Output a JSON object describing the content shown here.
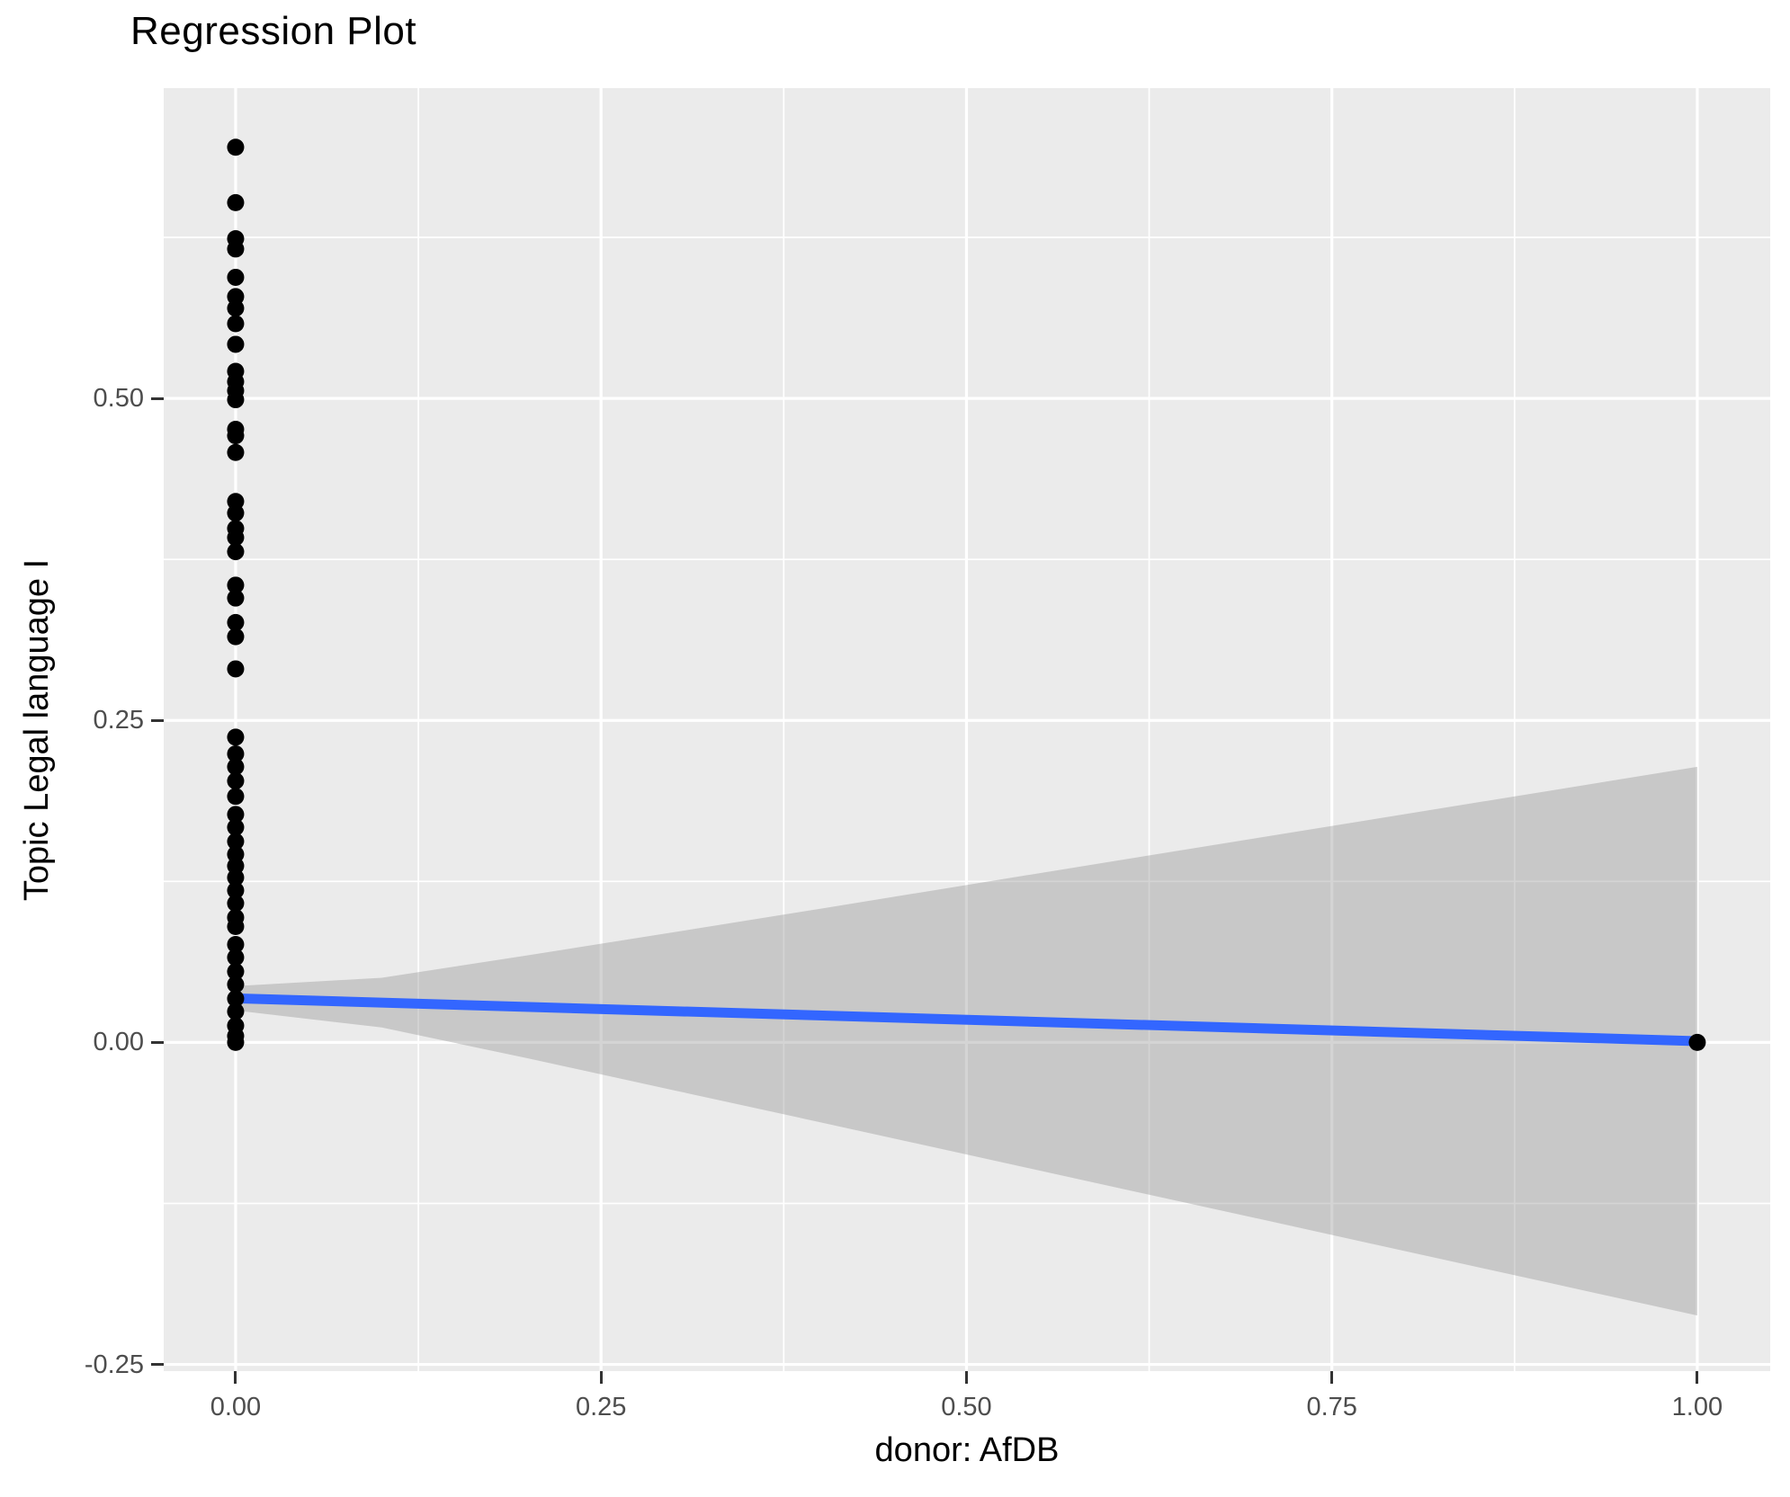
{
  "chart_data": {
    "type": "scatter",
    "title": "Regression Plot",
    "xlabel": "donor: AfDB",
    "ylabel": "Topic Legal language I",
    "legend": "none",
    "grid": true,
    "xlim": [
      -0.0492,
      1.0499
    ],
    "ylim": [
      -0.2552,
      0.7409
    ],
    "x_ticks": [
      {
        "value": 0.0,
        "label": "0.00"
      },
      {
        "value": 0.25,
        "label": "0.25"
      },
      {
        "value": 0.5,
        "label": "0.50"
      },
      {
        "value": 0.75,
        "label": "0.75"
      },
      {
        "value": 1.0,
        "label": "1.00"
      }
    ],
    "y_ticks": [
      {
        "value": -0.25,
        "label": "-0.25"
      },
      {
        "value": 0.0,
        "label": "0.00"
      },
      {
        "value": 0.25,
        "label": "0.25"
      },
      {
        "value": 0.5,
        "label": "0.50"
      }
    ],
    "x_minor": [
      0.125,
      0.375,
      0.625,
      0.875
    ],
    "y_minor": [
      -0.125,
      0.125,
      0.375,
      0.625
    ],
    "points_at_x0": [
      0.695,
      0.652,
      0.624,
      0.616,
      0.594,
      0.579,
      0.57,
      0.558,
      0.542,
      0.521,
      0.513,
      0.506,
      0.499,
      0.476,
      0.471,
      0.458,
      0.42,
      0.411,
      0.399,
      0.392,
      0.381,
      0.355,
      0.345,
      0.326,
      0.315,
      0.29,
      0.237,
      0.224,
      0.214,
      0.203,
      0.191,
      0.177,
      0.167,
      0.156,
      0.146,
      0.137,
      0.128,
      0.118,
      0.108,
      0.097,
      0.09,
      0.076,
      0.066,
      0.055,
      0.045,
      0.034,
      0.024,
      0.013,
      0.005,
      0.0
    ],
    "extra_points": [
      {
        "x": 1.0,
        "y": 0.0
      }
    ],
    "regression_line": {
      "x": [
        0.0,
        1.0
      ],
      "y": [
        0.0342,
        0.001
      ]
    },
    "confidence_band": {
      "x": [
        0.0,
        0.1,
        0.2,
        0.3,
        0.4,
        0.5,
        0.6,
        0.7,
        0.8,
        0.9,
        1.0
      ],
      "upper": [
        0.0437,
        0.0502,
        0.0676,
        0.0856,
        0.1038,
        0.1222,
        0.1406,
        0.1589,
        0.1772,
        0.1956,
        0.214
      ],
      "lower": [
        0.0248,
        0.0116,
        -0.0124,
        -0.0372,
        -0.062,
        -0.087,
        -0.112,
        -0.1369,
        -0.162,
        -0.187,
        -0.212
      ]
    },
    "colors": {
      "panel_bg": "#EBEBEB",
      "grid": "#FFFFFF",
      "point": "#000000",
      "line": "#3366FF",
      "band_fill": "#999999",
      "band_opacity": 0.42,
      "axis_text": "#4D4D4D",
      "tick_mark": "#333333",
      "title_text": "#000000"
    },
    "point_radius": 9.5,
    "line_width": 11
  }
}
